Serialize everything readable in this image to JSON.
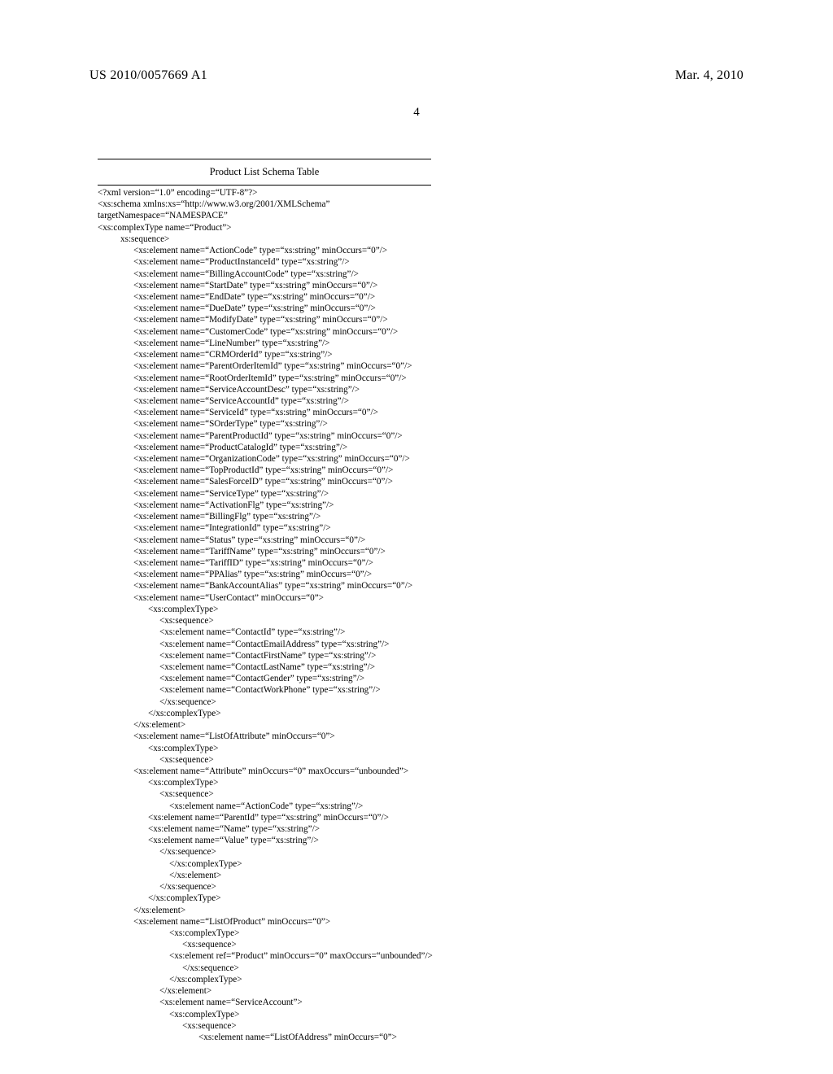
{
  "header": {
    "publication_number": "US 2010/0057669 A1",
    "publication_date": "Mar. 4, 2010",
    "page_number": "4"
  },
  "table": {
    "title": "Product List Schema Table"
  },
  "code": [
    {
      "cls": "i0",
      "t": "<?xml version=\"1.0\" encoding=\"UTF-8\"?>"
    },
    {
      "cls": "i0",
      "t": "<xs:schema xmlns:xs=\"http://www.w3.org/2001/XMLSchema\""
    },
    {
      "cls": "i0",
      "t": "targetNamespace=\"NAMESPACE\""
    },
    {
      "cls": "i0",
      "t": "<xs:complexType name=\"Product\">"
    },
    {
      "cls": "i1",
      "t": "xs:sequence>"
    },
    {
      "cls": "i2",
      "t": "<xs:element name=\"ActionCode\" type=\"xs:string\" minOccurs=\"0\"/>"
    },
    {
      "cls": "i2",
      "t": "<xs:element name=\"ProductInstanceId\" type=\"xs:string\"/>"
    },
    {
      "cls": "i2",
      "t": "<xs:element name=\"BillingAccountCode\" type=\"xs:string\"/>"
    },
    {
      "cls": "i2",
      "t": "<xs:element name=\"StartDate\" type=\"xs:string\" minOccurs=\"0\"/>"
    },
    {
      "cls": "i2",
      "t": "<xs:element name=\"EndDate\" type=\"xs:string\" minOccurs=\"0\"/>"
    },
    {
      "cls": "i2",
      "t": "<xs:element name=\"DueDate\" type=\"xs:string\" minOccurs=\"0\"/>"
    },
    {
      "cls": "i2",
      "t": "<xs:element name=\"ModifyDate\" type=\"xs:string\" minOccurs=\"0\"/>"
    },
    {
      "cls": "i2",
      "t": "<xs:element name=\"CustomerCode\" type=\"xs:string\" minOccurs=\"0\"/>"
    },
    {
      "cls": "i2",
      "t": "<xs:element name=\"LineNumber\" type=\"xs:string\"/>"
    },
    {
      "cls": "i2",
      "t": "<xs:element name=\"CRMOrderId\" type=\"xs:string\"/>"
    },
    {
      "cls": "i2",
      "t": "<xs:element name=\"ParentOrderItemId\" type=\"xs:string\" minOccurs=\"0\"/>"
    },
    {
      "cls": "i2",
      "t": "<xs:element name=\"RootOrderItemId\" type=\"xs:string\" minOccurs=\"0\"/>"
    },
    {
      "cls": "i2",
      "t": "<xs:element name=\"ServiceAccountDesc\" type=\"xs:string\"/>"
    },
    {
      "cls": "i2",
      "t": "<xs:element name=\"ServiceAccountId\" type=\"xs:string\"/>"
    },
    {
      "cls": "i2",
      "t": "<xs:element name=\"ServiceId\" type=\"xs:string\" minOccurs=\"0\"/>"
    },
    {
      "cls": "i2",
      "t": "<xs:element name=\"SOrderType\" type=\"xs:string\"/>"
    },
    {
      "cls": "i2",
      "t": "<xs:element name=\"ParentProductId\" type=\"xs:string\" minOccurs=\"0\"/>"
    },
    {
      "cls": "i2",
      "t": "<xs:element name=\"ProductCatalogId\" type=\"xs:string\"/>"
    },
    {
      "cls": "i2",
      "t": "<xs:element name=\"OrganizationCode\" type=\"xs:string\" minOccurs=\"0\"/>"
    },
    {
      "cls": "i2",
      "t": "<xs:element name=\"TopProductId\" type=\"xs:string\" minOccurs=\"0\"/>"
    },
    {
      "cls": "i2",
      "t": "<xs:element name=\"SalesForceID\" type=\"xs:string\" minOccurs=\"0\"/>"
    },
    {
      "cls": "i2",
      "t": "<xs:element name=\"ServiceType\" type=\"xs:string\"/>"
    },
    {
      "cls": "i2",
      "t": "<xs:element name=\"ActivationFlg\" type=\"xs:string\"/>"
    },
    {
      "cls": "i2",
      "t": "<xs:element name=\"BillingFlg\" type=\"xs:string\"/>"
    },
    {
      "cls": "i2",
      "t": "<xs:element name=\"IntegrationId\" type=\"xs:string\"/>"
    },
    {
      "cls": "i2",
      "t": "<xs:element name=\"Status\" type=\"xs:string\" minOccurs=\"0\"/>"
    },
    {
      "cls": "i2",
      "t": "<xs:element name=\"TariffName\" type=\"xs:string\" minOccurs=\"0\"/>"
    },
    {
      "cls": "i2",
      "t": "<xs:element name=\"TariffID\" type=\"xs:string\" minOccurs=\"0\"/>"
    },
    {
      "cls": "i2",
      "t": "<xs:element name=\"PPAlias\" type=\"xs:string\" minOccurs=\"0\"/>"
    },
    {
      "cls": "i2",
      "t": "<xs:element name=\"BankAccountAlias\" type=\"xs:string\" minOccurs=\"0\"/>"
    },
    {
      "cls": "i2",
      "t": "<xs:element name=\"UserContact\" minOccurs=\"0\">"
    },
    {
      "cls": "i3",
      "t": "<xs:complexType>"
    },
    {
      "cls": "i4",
      "t": "<xs:sequence>"
    },
    {
      "cls": "i4",
      "t": "<xs:element name=\"ContactId\" type=\"xs:string\"/>"
    },
    {
      "cls": "i4",
      "t": "<xs:element name=\"ContactEmailAddress\" type=\"xs:string\"/>"
    },
    {
      "cls": "i4",
      "t": "<xs:element name=\"ContactFirstName\" type=\"xs:string\"/>"
    },
    {
      "cls": "i4",
      "t": "<xs:element name=\"ContactLastName\" type=\"xs:string\"/>"
    },
    {
      "cls": "i4",
      "t": "<xs:element name=\"ContactGender\" type=\"xs:string\"/>"
    },
    {
      "cls": "i4",
      "t": "<xs:element name=\"ContactWorkPhone\" type=\"xs:string\"/>"
    },
    {
      "cls": "i4",
      "t": "</xs:sequence>"
    },
    {
      "cls": "i3",
      "t": "</xs:complexType>"
    },
    {
      "cls": "i2",
      "t": "</xs:element>"
    },
    {
      "cls": "i2",
      "t": "<xs:element name=\"ListOfAttribute\" minOccurs=\"0\">"
    },
    {
      "cls": "i3",
      "t": "<xs:complexType>"
    },
    {
      "cls": "i4",
      "t": "<xs:sequence>"
    },
    {
      "cls": "i2",
      "t": "<xs:element name=\"Attribute\" minOccurs=\"0\" maxOccurs=\"unbounded\">"
    },
    {
      "cls": "i3",
      "t": "<xs:complexType>"
    },
    {
      "cls": "i4",
      "t": "<xs:sequence>"
    },
    {
      "cls": "i5",
      "t": "<xs:element name=\"ActionCode\" type=\"xs:string\"/>"
    },
    {
      "cls": "i3",
      "t": "<xs:element name=\"ParentId\" type=\"xs:string\" minOccurs=\"0\"/>"
    },
    {
      "cls": "i3",
      "t": "<xs:element name=\"Name\" type=\"xs:string\"/>"
    },
    {
      "cls": "i3",
      "t": "<xs:element name=\"Value\" type=\"xs:string\"/>"
    },
    {
      "cls": "i4",
      "t": "</xs:sequence>"
    },
    {
      "cls": "i5",
      "t": "</xs:complexType>"
    },
    {
      "cls": "i5",
      "t": "</xs:element>"
    },
    {
      "cls": "i4",
      "t": "</xs:sequence>"
    },
    {
      "cls": "i3",
      "t": "</xs:complexType>"
    },
    {
      "cls": "i2",
      "t": "</xs:element>"
    },
    {
      "cls": "i2",
      "t": "<xs:element name=\"ListOfProduct\" minOccurs=\"0\">"
    },
    {
      "cls": "i5",
      "t": "<xs:complexType>"
    },
    {
      "cls": "i6",
      "t": "<xs:sequence>"
    },
    {
      "cls": "i5",
      "t": "<xs:element ref=\"Product\" minOccurs=\"0\" maxOccurs=\"unbounded\"/>"
    },
    {
      "cls": "i6",
      "t": "</xs:sequence>"
    },
    {
      "cls": "i5",
      "t": "</xs:complexType>"
    },
    {
      "cls": "i4",
      "t": "</xs:element>"
    },
    {
      "cls": "i4",
      "t": "<xs:element name=\"ServiceAccount\">"
    },
    {
      "cls": "i5",
      "t": "<xs:complexType>"
    },
    {
      "cls": "i6",
      "t": "<xs:sequence>"
    },
    {
      "cls": "i7",
      "t": "<xs:element name=\"ListOfAddress\" minOccurs=\"0\">"
    }
  ]
}
